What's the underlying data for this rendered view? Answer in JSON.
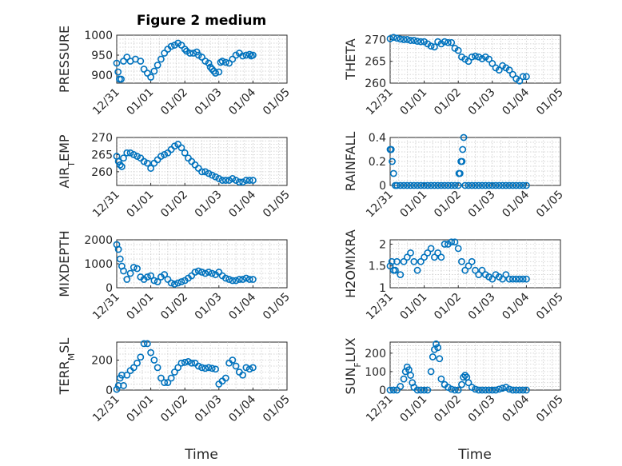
{
  "figure_title": "Figure 2 medium",
  "colors": {
    "series": "#0072BD",
    "axis": "#262626",
    "grid": "#c8c8c8"
  },
  "chart_data": [
    {
      "type": "scatter",
      "id": "pressure",
      "ylabel": "PRESSURE",
      "ylabel_sub": "",
      "ylim": [
        880,
        1000
      ],
      "yticks": [
        900,
        950,
        1000
      ],
      "ytick_labels": [
        "900",
        "950",
        "1000"
      ],
      "x": [
        0.0,
        0.04,
        0.08,
        0.13,
        0.2,
        0.3,
        0.4,
        0.55,
        0.7,
        0.8,
        0.9,
        1.0,
        1.1,
        1.2,
        1.3,
        1.4,
        1.5,
        1.6,
        1.7,
        1.8,
        1.9,
        2.0,
        2.05,
        2.15,
        2.25,
        2.35,
        2.4,
        2.5,
        2.6,
        2.7,
        2.75,
        2.8,
        2.85,
        2.9,
        3.0,
        3.05,
        3.1,
        3.2,
        3.3,
        3.4,
        3.5,
        3.6,
        3.7,
        3.8,
        3.9,
        3.95,
        4.0
      ],
      "y": [
        930,
        908,
        890,
        890,
        935,
        945,
        935,
        940,
        935,
        915,
        905,
        895,
        910,
        925,
        940,
        955,
        965,
        972,
        975,
        980,
        975,
        965,
        960,
        955,
        955,
        958,
        950,
        945,
        935,
        930,
        920,
        915,
        910,
        905,
        908,
        932,
        935,
        932,
        930,
        940,
        950,
        955,
        948,
        950,
        952,
        948,
        950
      ]
    },
    {
      "type": "scatter",
      "id": "theta",
      "ylabel": "THETA",
      "ylabel_sub": "",
      "ylim": [
        260,
        271
      ],
      "yticks": [
        260,
        265,
        270
      ],
      "ytick_labels": [
        "260",
        "265",
        "270"
      ],
      "x": [
        0.0,
        0.1,
        0.2,
        0.3,
        0.4,
        0.5,
        0.6,
        0.7,
        0.8,
        0.9,
        1.0,
        1.1,
        1.2,
        1.3,
        1.4,
        1.5,
        1.6,
        1.7,
        1.8,
        1.9,
        2.0,
        2.1,
        2.2,
        2.3,
        2.4,
        2.5,
        2.6,
        2.7,
        2.8,
        2.9,
        3.0,
        3.1,
        3.2,
        3.3,
        3.4,
        3.5,
        3.6,
        3.7,
        3.8,
        3.9,
        4.0
      ],
      "y": [
        270.2,
        270.5,
        270.3,
        270.1,
        270,
        270,
        269.8,
        269.8,
        269.6,
        269.5,
        269.5,
        269,
        268.5,
        268.3,
        269.5,
        269,
        269.5,
        269.3,
        269.3,
        268,
        267.5,
        266,
        265.5,
        265,
        266,
        266.2,
        266,
        265.6,
        266,
        265.5,
        264.5,
        263.5,
        263,
        264,
        263.5,
        263,
        262,
        261,
        260.5,
        261.5,
        261.5
      ]
    },
    {
      "type": "scatter",
      "id": "air_temp",
      "ylabel": "AIR",
      "ylabel_sub": "T",
      "ylabel_suffix": "EMP",
      "ylim": [
        256,
        270
      ],
      "yticks": [
        260,
        265,
        270
      ],
      "ytick_labels": [
        "260",
        "265",
        "270"
      ],
      "x": [
        0.0,
        0.05,
        0.1,
        0.15,
        0.2,
        0.3,
        0.4,
        0.5,
        0.6,
        0.7,
        0.8,
        0.9,
        1.0,
        1.1,
        1.2,
        1.3,
        1.4,
        1.5,
        1.6,
        1.7,
        1.8,
        1.9,
        2.0,
        2.1,
        2.2,
        2.3,
        2.4,
        2.5,
        2.6,
        2.7,
        2.8,
        2.9,
        3.0,
        3.1,
        3.2,
        3.3,
        3.4,
        3.5,
        3.6,
        3.7,
        3.8,
        3.9,
        4.0
      ],
      "y": [
        264.5,
        263,
        262,
        261.5,
        264,
        265.5,
        265.5,
        265,
        264.5,
        264,
        263,
        262.5,
        261,
        262.5,
        263.5,
        264.5,
        265,
        265.5,
        266.5,
        267.5,
        268,
        267,
        265.5,
        264,
        263,
        262,
        261,
        260,
        260,
        259.5,
        259,
        258.5,
        258,
        257.5,
        257.5,
        257.5,
        258,
        257.5,
        257,
        257,
        257.5,
        257.5,
        257.5
      ]
    },
    {
      "type": "scatter",
      "id": "rainfall",
      "ylabel": "RAINFALL",
      "ylabel_sub": "",
      "ylim": [
        0,
        0.4
      ],
      "yticks": [
        0,
        0.2,
        0.4
      ],
      "ytick_labels": [
        "0",
        "0.2",
        "0.4"
      ],
      "x": [
        0.0,
        0.03,
        0.06,
        0.1,
        0.15,
        0.2,
        0.3,
        0.4,
        0.5,
        0.6,
        0.7,
        0.8,
        0.9,
        1.0,
        1.1,
        1.2,
        1.3,
        1.4,
        1.5,
        1.6,
        1.7,
        1.8,
        1.9,
        2.0,
        2.02,
        2.05,
        2.08,
        2.11,
        2.13,
        2.16,
        2.2,
        2.3,
        2.4,
        2.5,
        2.6,
        2.7,
        2.8,
        2.9,
        3.0,
        3.1,
        3.2,
        3.3,
        3.4,
        3.5,
        3.6,
        3.7,
        3.8,
        3.9,
        4.0
      ],
      "y": [
        0.3,
        0.3,
        0.2,
        0.1,
        0.0,
        0,
        0,
        0,
        0,
        0,
        0,
        0,
        0,
        0,
        0,
        0,
        0,
        0,
        0,
        0,
        0,
        0,
        0,
        0,
        0.1,
        0.1,
        0.2,
        0.2,
        0.3,
        0.4,
        0,
        0,
        0,
        0,
        0,
        0,
        0,
        0,
        0,
        0,
        0,
        0,
        0,
        0,
        0,
        0,
        0,
        0,
        0
      ]
    },
    {
      "type": "scatter",
      "id": "mixdepth",
      "ylabel": "MIXDEPTH",
      "ylabel_sub": "",
      "ylim": [
        0,
        2000
      ],
      "yticks": [
        0,
        1000,
        2000
      ],
      "ytick_labels": [
        "0",
        "1000",
        "2000"
      ],
      "x": [
        0.0,
        0.05,
        0.1,
        0.15,
        0.2,
        0.3,
        0.4,
        0.5,
        0.6,
        0.7,
        0.8,
        0.9,
        1.0,
        1.1,
        1.2,
        1.3,
        1.4,
        1.5,
        1.6,
        1.7,
        1.8,
        1.9,
        2.0,
        2.1,
        2.2,
        2.3,
        2.4,
        2.5,
        2.6,
        2.7,
        2.8,
        2.9,
        3.0,
        3.1,
        3.2,
        3.3,
        3.4,
        3.5,
        3.6,
        3.7,
        3.8,
        3.9,
        4.0
      ],
      "y": [
        1800,
        1600,
        1200,
        900,
        700,
        350,
        600,
        850,
        800,
        450,
        350,
        450,
        500,
        300,
        250,
        450,
        550,
        350,
        200,
        150,
        200,
        250,
        300,
        400,
        500,
        650,
        700,
        650,
        600,
        650,
        600,
        550,
        650,
        500,
        400,
        350,
        300,
        300,
        350,
        350,
        400,
        350,
        350
      ]
    },
    {
      "type": "scatter",
      "id": "h2omixra",
      "ylabel": "H2OMIXRA",
      "ylabel_sub": "",
      "ylim": [
        1,
        2.1
      ],
      "yticks": [
        1,
        1.5,
        2
      ],
      "ytick_labels": [
        "1",
        "1.5",
        "2"
      ],
      "x": [
        0.0,
        0.05,
        0.1,
        0.15,
        0.2,
        0.3,
        0.4,
        0.5,
        0.6,
        0.7,
        0.8,
        0.9,
        1.0,
        1.1,
        1.2,
        1.3,
        1.4,
        1.5,
        1.6,
        1.7,
        1.8,
        1.9,
        2.0,
        2.1,
        2.2,
        2.3,
        2.4,
        2.5,
        2.6,
        2.7,
        2.8,
        2.9,
        3.0,
        3.1,
        3.2,
        3.3,
        3.4,
        3.5,
        3.6,
        3.7,
        3.8,
        3.9,
        4.0
      ],
      "y": [
        1.5,
        1.6,
        1.4,
        1.4,
        1.6,
        1.3,
        1.6,
        1.7,
        1.8,
        1.6,
        1.4,
        1.6,
        1.7,
        1.8,
        1.9,
        1.7,
        1.8,
        1.7,
        2.0,
        2.0,
        2.05,
        2.05,
        1.9,
        1.6,
        1.4,
        1.5,
        1.6,
        1.4,
        1.3,
        1.4,
        1.3,
        1.25,
        1.2,
        1.3,
        1.25,
        1.2,
        1.3,
        1.2,
        1.2,
        1.2,
        1.2,
        1.2,
        1.2
      ]
    },
    {
      "type": "scatter",
      "id": "terr_msl",
      "ylabel": "TERR",
      "ylabel_sub": "M",
      "ylabel_suffix": "SL",
      "ylim": [
        0,
        320
      ],
      "yticks": [
        0,
        200
      ],
      "ytick_labels": [
        "0",
        "200"
      ],
      "x": [
        0.0,
        0.05,
        0.1,
        0.15,
        0.2,
        0.3,
        0.4,
        0.5,
        0.6,
        0.7,
        0.8,
        0.9,
        1.0,
        1.1,
        1.2,
        1.3,
        1.4,
        1.5,
        1.6,
        1.7,
        1.8,
        1.9,
        2.0,
        2.1,
        2.2,
        2.3,
        2.4,
        2.5,
        2.6,
        2.7,
        2.8,
        2.9,
        3.0,
        3.1,
        3.2,
        3.3,
        3.4,
        3.5,
        3.6,
        3.7,
        3.8,
        3.9,
        4.0
      ],
      "y": [
        5,
        30,
        80,
        100,
        30,
        100,
        130,
        150,
        180,
        220,
        310,
        310,
        250,
        200,
        150,
        80,
        50,
        50,
        80,
        120,
        150,
        180,
        185,
        190,
        180,
        180,
        160,
        150,
        145,
        150,
        145,
        140,
        40,
        60,
        80,
        180,
        200,
        160,
        120,
        100,
        150,
        140,
        150
      ]
    },
    {
      "type": "scatter",
      "id": "sun_flux",
      "ylabel": "SUN",
      "ylabel_sub": "F",
      "ylabel_suffix": "LUX",
      "ylim": [
        0,
        260
      ],
      "yticks": [
        0,
        100,
        200
      ],
      "ytick_labels": [
        "0",
        "100",
        "200"
      ],
      "x": [
        0.0,
        0.1,
        0.2,
        0.3,
        0.4,
        0.45,
        0.5,
        0.55,
        0.6,
        0.65,
        0.7,
        0.8,
        0.9,
        1.0,
        1.1,
        1.2,
        1.25,
        1.3,
        1.35,
        1.4,
        1.45,
        1.5,
        1.6,
        1.7,
        1.8,
        1.9,
        2.0,
        2.1,
        2.15,
        2.2,
        2.25,
        2.3,
        2.4,
        2.5,
        2.6,
        2.7,
        2.8,
        2.9,
        3.0,
        3.1,
        3.2,
        3.3,
        3.4,
        3.5,
        3.6,
        3.7,
        3.8,
        3.9,
        4.0
      ],
      "y": [
        0,
        0,
        0,
        20,
        60,
        100,
        125,
        110,
        80,
        40,
        15,
        0,
        0,
        0,
        0,
        100,
        180,
        220,
        250,
        230,
        170,
        60,
        30,
        15,
        5,
        0,
        0,
        30,
        70,
        80,
        70,
        40,
        15,
        5,
        0,
        0,
        0,
        0,
        0,
        0,
        5,
        10,
        15,
        5,
        0,
        0,
        0,
        0,
        0
      ]
    }
  ],
  "x_axis": {
    "label": "Time",
    "xlim": [
      0,
      5
    ],
    "ticks": [
      0,
      1,
      2,
      3,
      4,
      5
    ],
    "tick_labels": [
      "12/31",
      "01/01",
      "01/02",
      "01/03",
      "01/04",
      "01/05"
    ]
  }
}
